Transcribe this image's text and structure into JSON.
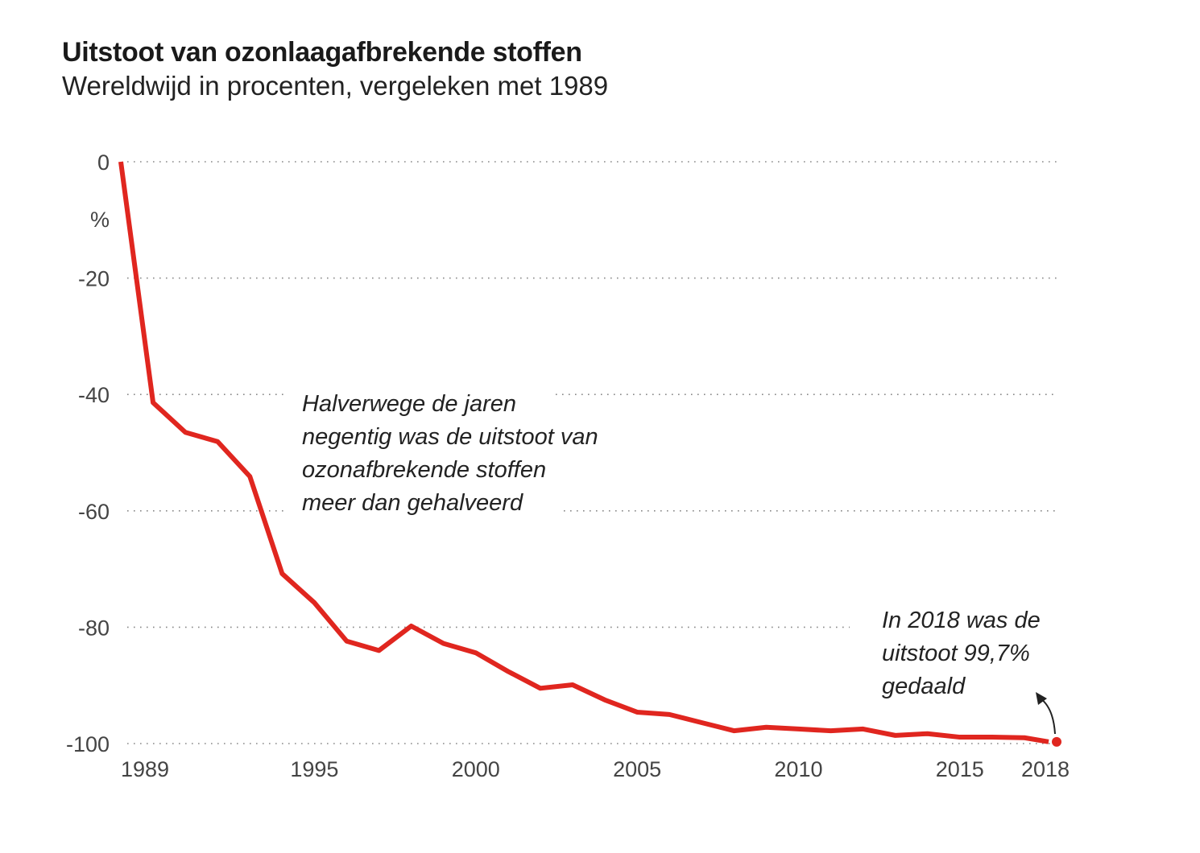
{
  "title": "Uitstoot van ozonlaagafbrekende stoffen",
  "subtitle": "Wereldwijd in procenten, vergeleken met 1989",
  "chart_data": {
    "type": "line",
    "title": "Uitstoot van ozonlaagafbrekende stoffen",
    "subtitle": "Wereldwijd in procenten, vergeleken met 1989",
    "ylabel": "%",
    "xlabel": "",
    "ylim": [
      -100,
      0
    ],
    "xlim": [
      1989,
      2018
    ],
    "yticks": [
      "0",
      "-20",
      "-40",
      "-60",
      "-80",
      "-100"
    ],
    "ytick_values": [
      0,
      -20,
      -40,
      -60,
      -80,
      -100
    ],
    "xticks": [
      "1989",
      "1995",
      "2000",
      "2005",
      "2010",
      "2015",
      "2018"
    ],
    "xtick_values": [
      1989,
      1995,
      2000,
      2005,
      2010,
      2015,
      2018
    ],
    "grid": "horizontal dotted",
    "line_color": "#e0261f",
    "x": [
      1989,
      1990,
      1991,
      1992,
      1993,
      1994,
      1995,
      1996,
      1997,
      1998,
      1999,
      2000,
      2001,
      2002,
      2003,
      2004,
      2005,
      2006,
      2007,
      2008,
      2009,
      2010,
      2011,
      2012,
      2013,
      2014,
      2015,
      2016,
      2017,
      2018
    ],
    "y": [
      0,
      -41.4,
      -46.5,
      -48.1,
      -54.1,
      -70.8,
      -75.8,
      -82.4,
      -84.0,
      -79.8,
      -82.8,
      -84.4,
      -87.6,
      -90.5,
      -89.9,
      -92.5,
      -94.6,
      -95.0,
      -96.4,
      -97.8,
      -97.2,
      -97.5,
      -97.8,
      -97.5,
      -98.6,
      -98.3,
      -98.9,
      -98.9,
      -99.0,
      -99.7
    ],
    "annotations": [
      {
        "lines": [
          "Halverwege de jaren",
          "negentig was de uitstoot van",
          "ozonafbrekende stoffen",
          "meer dan gehalveerd"
        ]
      },
      {
        "lines": [
          "In 2018 was de",
          "uitstoot 99,7%",
          "gedaald"
        ],
        "points_to": 2018
      }
    ]
  }
}
